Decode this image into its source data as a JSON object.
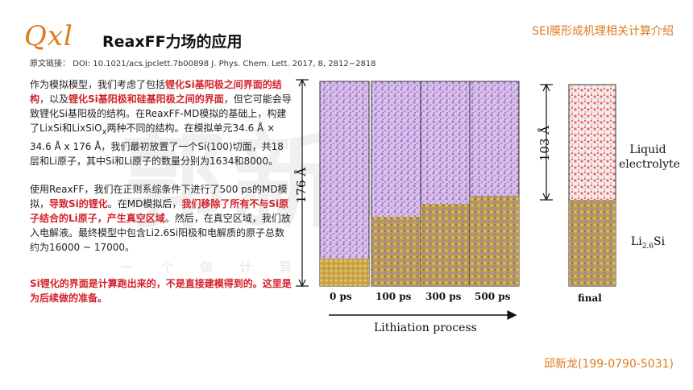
{
  "header": {
    "logo_text": "Qxl",
    "title": "ReaxFF力场的应用",
    "top_right": "SEI膜形成机理相关计算介绍"
  },
  "source": "原文链接： DOI: 10.1021/acs.jpclett.7b00898  J. Phys. Chem. Lett. 2017,    8,    2812−2818",
  "paragraph1": {
    "t1": "作为模拟模型，我们考虑了包括",
    "r1": "锂化Si基阳极之间界面的结构",
    "t2": "，以及",
    "r2": "锂化Si基阳极和硅基阳极之间的界面",
    "t3": "，但它可能会导致锂化Si基阳极的结构。在ReaxFF-MD模拟的基础上，构建了LixSi和LixSiO",
    "sub": "x",
    "t4": "两种不同的结构。在模拟单元34.6 Å × 34.6 Å x 176 Å，我们最初放置了一个Si(100)切面，共18层和Li原子，其中Si和Li原子的数量分别为1634和8000。"
  },
  "paragraph2": {
    "t1": "使用ReaxFF，我们在正则系综条件下进行了500 ps的MD模拟，",
    "r1": "导致Si的锂化",
    "t2": "。在MD模拟后，",
    "r2": "我们移除了所有不与Si原子结合的Li原子，产生真空区域",
    "t3": "。然后，在真空区域，我们放入电解液。最终模型中包含Li2.6Si阳极和电解质的原子总数约为16000 ~ 17000。"
  },
  "note": "Si锂化的界面是计算跑出来的，不是直接建模得到的。这里是为后续做的准备。",
  "footer": "邱新龙(199-0790-5031)",
  "watermark": {
    "main": "郭新龙",
    "sub": "一 个 做 计 算 仿 真 的"
  },
  "figure": {
    "height_label_left": "176 Å",
    "height_label_right": "103 Å",
    "time_labels": [
      "0 ps",
      "100 ps",
      "300 ps",
      "500 ps",
      "final"
    ],
    "electrolyte_label_line1": "Liquid",
    "electrolyte_label_line2": "electrolyte",
    "anode_label": "Li",
    "anode_sub": "2.6",
    "anode_label_tail": "Si",
    "process_label": "Lithiation process",
    "colors": {
      "li": "#c8a0e0",
      "si": "#d4b04a",
      "electrolyte": "#e88a8a"
    }
  }
}
